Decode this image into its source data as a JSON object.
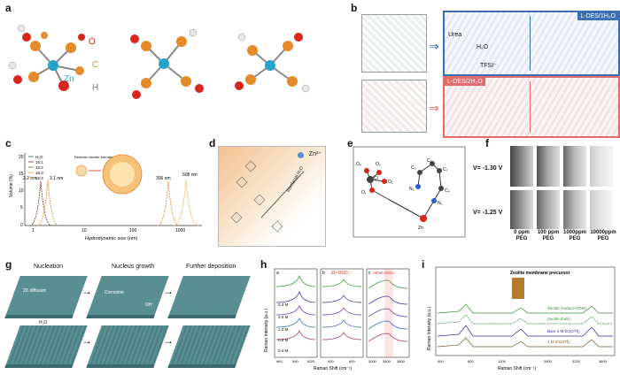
{
  "panels": {
    "a": {
      "label": "a",
      "atoms": {
        "o": "O",
        "c": "C",
        "zn": "Zn",
        "h": "H"
      }
    },
    "b": {
      "label": "b",
      "box1": "L-DES/1H₂O",
      "box2": "L-DES/2H₂O",
      "urea": "Urea",
      "h2o": "H₂O",
      "tfsi": "TFSI⁻"
    },
    "c": {
      "label": "c",
      "legend": [
        "H₂O",
        "16:1",
        "16:2",
        "16:3",
        "16:4"
      ],
      "annot1": "Reverse micelle formation",
      "peaks": [
        "2.2 nm",
        "3.1 nm",
        "306 nm",
        "608 nm"
      ],
      "xlabel": "Hydrodynamic size (nm)",
      "ylabel": "Volume (%)",
      "yticks": [
        "20",
        "15",
        "10",
        "5",
        "0"
      ],
      "xticks": [
        "1",
        "10",
        "100",
        "1000"
      ]
    },
    "d": {
      "label": "d",
      "zn": "Zn²⁺",
      "arrow": "Interfacial H₂O"
    },
    "e": {
      "label": "e",
      "atoms": [
        "O₄",
        "O₃",
        "Cl",
        "O₂",
        "O₁",
        "C₁",
        "C₂",
        "C₃",
        "N₂",
        "C₄",
        "N₁",
        "Zn"
      ]
    },
    "f": {
      "label": "f",
      "row1": "V= -1.30 V",
      "row2": "V= -1.25 V",
      "cols": [
        "0 ppm PEG",
        "100 ppm PEG",
        "1000ppm PEG",
        "10000ppm PEG"
      ]
    },
    "g": {
      "label": "g",
      "steps": [
        "Nucleation",
        "Nucleus growth",
        "Further deposition"
      ],
      "annot": [
        "2D diffusion",
        "Corrosion",
        "OH⁻",
        "H₂O"
      ]
    },
    "h": {
      "label": "h",
      "sub": [
        "a",
        "b",
        "c"
      ],
      "sub_titles": [
        "Zn-OSO₃⁻",
        "HOH-OSO₃⁻"
      ],
      "conc": [
        "3.3 M",
        "2.0 M",
        "1.0 M",
        "0.5 M",
        "0.4 M"
      ],
      "xlabel": "Raman Shift (cm⁻¹)",
      "ylabel": "Raman Intensity (a.u.)",
      "xticks1": [
        "960",
        "990",
        "1020"
      ],
      "xticks2": [
        "400",
        "600"
      ],
      "xticks3": [
        "3000",
        "3400",
        "3600"
      ]
    },
    "i": {
      "label": "i",
      "title": "Zeolite membrane precursor",
      "curves": [
        "Zeolite (surface EDM)",
        "Zeolite (bulk)",
        "Bare 3 M Zn(OTf)₂",
        "1 M Zn(OTf)₂"
      ],
      "xlabel": "Raman Shift (cm⁻¹)",
      "ylabel": "Raman Intensity (a.u.)",
      "xticks": [
        "400",
        "800",
        "1200",
        "2800",
        "3200",
        "3600"
      ]
    }
  },
  "colors": {
    "zn": "#26a3c9",
    "o": "#d9261c",
    "c": "#e38b2b",
    "h": "#e8e8e8",
    "blue_box": "#3b6fb5",
    "red_box": "#e36a6a",
    "teal": "#5a8f91"
  }
}
